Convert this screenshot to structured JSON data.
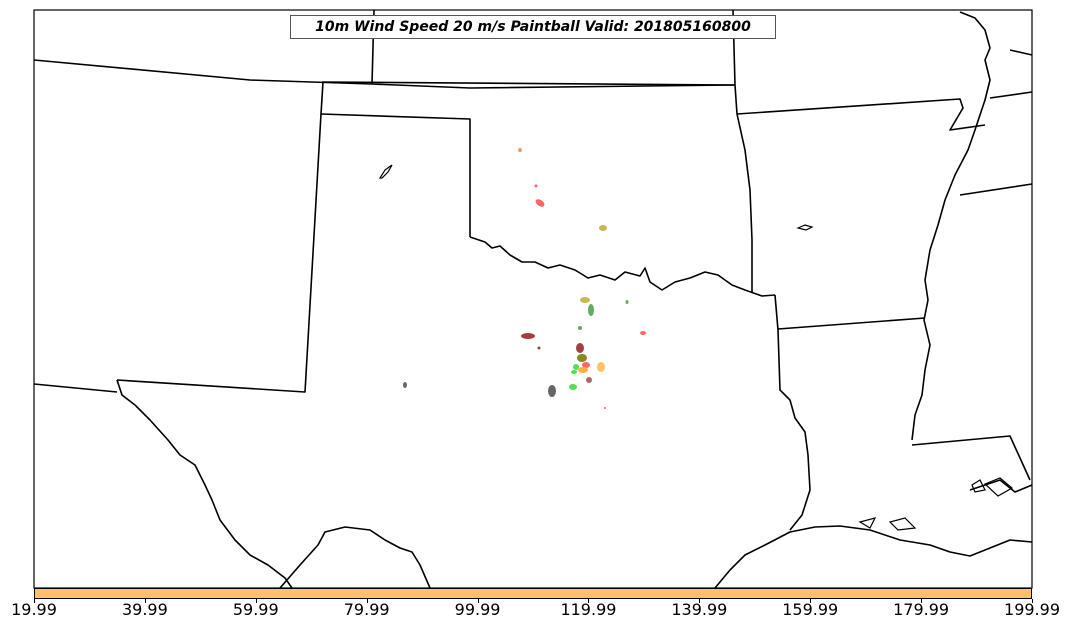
{
  "title": "10m Wind Speed 20 m/s Paintball Valid: 201805160800",
  "colorbar": {
    "color": "#FFC266",
    "tick_labels": [
      "19.99",
      "39.99",
      "59.99",
      "79.99",
      "99.99",
      "119.99",
      "139.99",
      "159.99",
      "179.99",
      "199.99"
    ]
  },
  "paintball_colors": [
    "#FF6666",
    "#E0A060",
    "#C8B850",
    "#66A866",
    "#55DD55",
    "#A04040",
    "#FFB040",
    "#666666",
    "#888822"
  ]
}
